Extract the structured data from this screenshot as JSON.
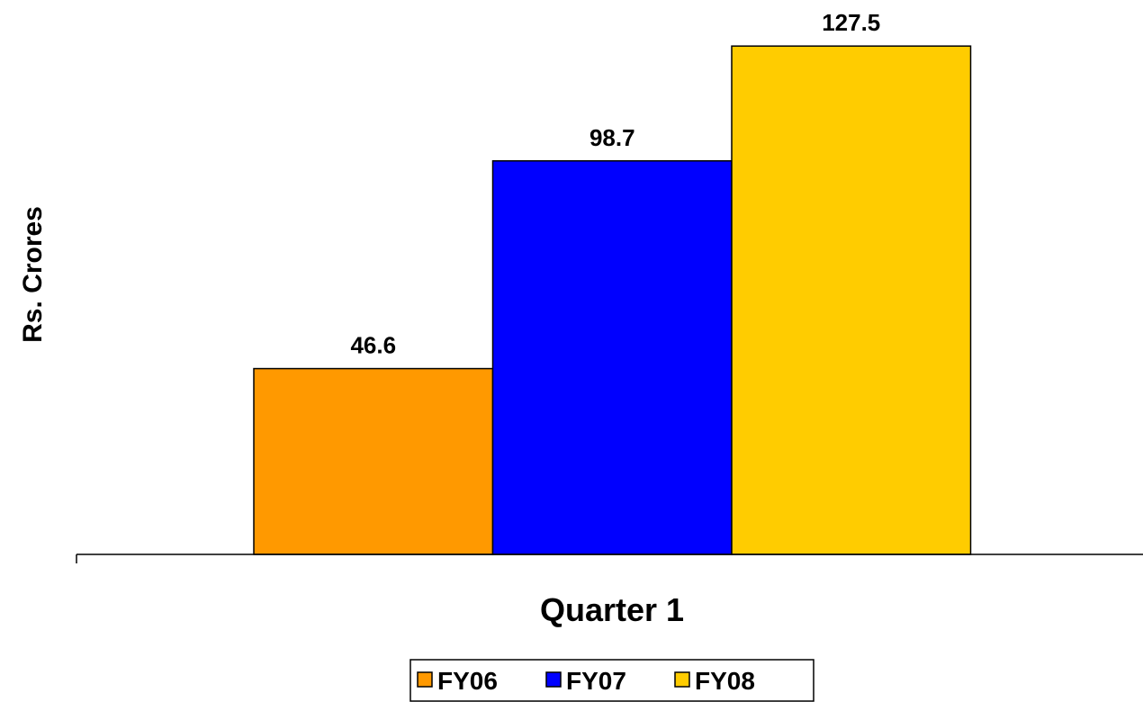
{
  "chart_data": {
    "type": "bar",
    "categories": [
      "Quarter 1"
    ],
    "xlabel": "Quarter 1",
    "ylabel": "Rs. Crores",
    "ylim": [
      0,
      135
    ],
    "grid": false,
    "legend_position": "bottom-center",
    "series": [
      {
        "name": "FY06",
        "values": [
          46.6
        ],
        "color": "#FF9900"
      },
      {
        "name": "FY07",
        "values": [
          98.7
        ],
        "color": "#0000FF"
      },
      {
        "name": "FY08",
        "values": [
          127.5
        ],
        "color": "#FFCC00"
      }
    ]
  }
}
